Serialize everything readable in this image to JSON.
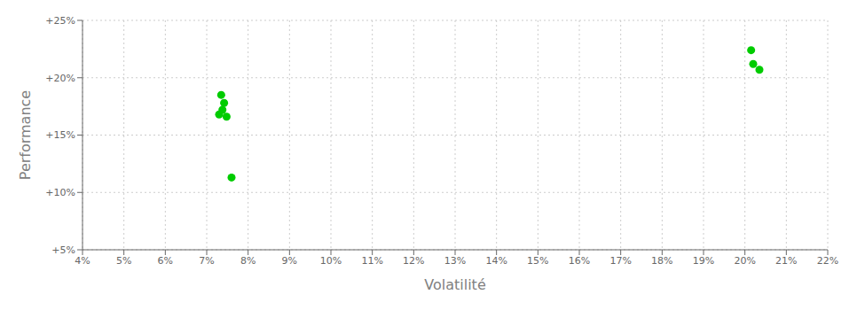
{
  "chart_data": {
    "type": "scatter",
    "xlabel": "Volatilité",
    "ylabel": "Performance",
    "x": [
      0.0735,
      0.0742,
      0.0738,
      0.073,
      0.0748,
      0.076,
      0.2015,
      0.202,
      0.2035
    ],
    "values": [
      0.185,
      0.178,
      0.172,
      0.168,
      0.166,
      0.113,
      0.224,
      0.212,
      0.207
    ],
    "color": "#00cc00",
    "xlim": [
      0.04,
      0.22
    ],
    "ylim": [
      0.05,
      0.25
    ],
    "xticks": [
      {
        "value": 0.04,
        "label": "4%"
      },
      {
        "value": 0.05,
        "label": "5%"
      },
      {
        "value": 0.06,
        "label": "6%"
      },
      {
        "value": 0.07,
        "label": "7%"
      },
      {
        "value": 0.08,
        "label": "8%"
      },
      {
        "value": 0.09,
        "label": "9%"
      },
      {
        "value": 0.1,
        "label": "10%"
      },
      {
        "value": 0.11,
        "label": "11%"
      },
      {
        "value": 0.12,
        "label": "12%"
      },
      {
        "value": 0.13,
        "label": "13%"
      },
      {
        "value": 0.14,
        "label": "14%"
      },
      {
        "value": 0.15,
        "label": "15%"
      },
      {
        "value": 0.16,
        "label": "16%"
      },
      {
        "value": 0.17,
        "label": "17%"
      },
      {
        "value": 0.18,
        "label": "18%"
      },
      {
        "value": 0.19,
        "label": "19%"
      },
      {
        "value": 0.2,
        "label": "20%"
      },
      {
        "value": 0.21,
        "label": "21%"
      },
      {
        "value": 0.22,
        "label": "22%"
      }
    ],
    "yticks": [
      {
        "value": 0.05,
        "label": "+5%"
      },
      {
        "value": 0.1,
        "label": "+10%"
      },
      {
        "value": 0.15,
        "label": "+15%"
      },
      {
        "value": 0.2,
        "label": "+20%"
      },
      {
        "value": 0.25,
        "label": "+25%"
      }
    ],
    "grid": true
  }
}
